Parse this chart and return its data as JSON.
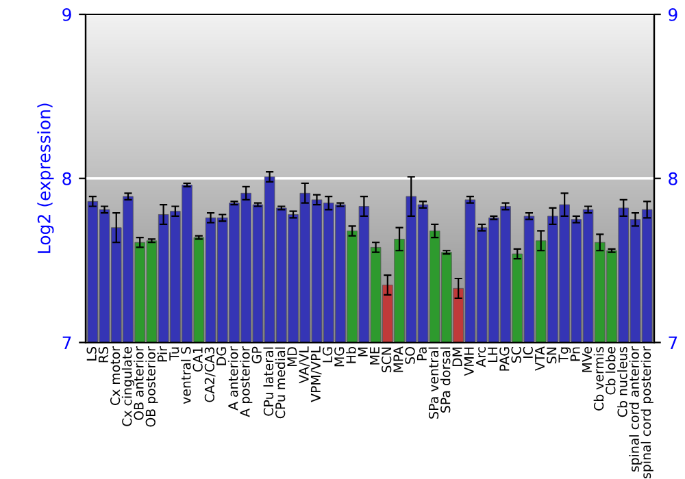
{
  "chart_data": {
    "type": "bar",
    "ylabel": "Log2 (expression)",
    "categories": [
      "LS",
      "RS",
      "Cx motor",
      "Cx cingulate",
      "OB anterior",
      "OB posterior",
      "Pir",
      "Tu",
      "ventral S",
      "CA1",
      "CA2/CA3",
      "DG",
      "A anterior",
      "A posterior",
      "GP",
      "CPu lateral",
      "CPu medial",
      "MD",
      "VA/VL",
      "VPM/VPL",
      "LG",
      "MG",
      "Hb",
      "M",
      "ME",
      "SCN",
      "MPA",
      "SO",
      "Pa",
      "SPa ventral",
      "SPa dorsal",
      "DM",
      "VMH",
      "Arc",
      "LH",
      "PAG",
      "SC",
      "IC",
      "VTA",
      "SN",
      "Tg",
      "Pn",
      "MVe",
      "Cb vermis",
      "Cb lobe",
      "Cb nucleus",
      "spinal cord anterior",
      "spinal cord posterior"
    ],
    "values": [
      7.86,
      7.81,
      7.7,
      7.89,
      7.61,
      7.62,
      7.78,
      7.8,
      7.96,
      7.64,
      7.76,
      7.76,
      7.85,
      7.91,
      7.84,
      8.01,
      7.82,
      7.78,
      7.91,
      7.87,
      7.85,
      7.84,
      7.68,
      7.83,
      7.58,
      7.35,
      7.63,
      7.89,
      7.84,
      7.68,
      7.55,
      7.33,
      7.87,
      7.7,
      7.76,
      7.83,
      7.54,
      7.77,
      7.62,
      7.77,
      7.84,
      7.75,
      7.81,
      7.61,
      7.56,
      7.82,
      7.75,
      7.81
    ],
    "errors": [
      0.03,
      0.02,
      0.09,
      0.02,
      0.03,
      0.01,
      0.06,
      0.03,
      0.01,
      0.01,
      0.03,
      0.02,
      0.01,
      0.04,
      0.01,
      0.03,
      0.01,
      0.02,
      0.06,
      0.03,
      0.04,
      0.01,
      0.03,
      0.06,
      0.03,
      0.06,
      0.07,
      0.12,
      0.02,
      0.04,
      0.01,
      0.06,
      0.02,
      0.02,
      0.01,
      0.02,
      0.03,
      0.02,
      0.06,
      0.05,
      0.07,
      0.02,
      0.02,
      0.05,
      0.01,
      0.05,
      0.04,
      0.05
    ],
    "colors": [
      "#3535b5",
      "#3535b5",
      "#3535b5",
      "#3535b5",
      "#2e9a2e",
      "#2e9a2e",
      "#3535b5",
      "#3535b5",
      "#3535b5",
      "#2e9a2e",
      "#3535b5",
      "#3535b5",
      "#3535b5",
      "#3535b5",
      "#3535b5",
      "#3535b5",
      "#3535b5",
      "#3535b5",
      "#3535b5",
      "#3535b5",
      "#3535b5",
      "#3535b5",
      "#2e9a2e",
      "#3535b5",
      "#2e9a2e",
      "#c03a3a",
      "#2e9a2e",
      "#3535b5",
      "#3535b5",
      "#2e9a2e",
      "#2e9a2e",
      "#c03a3a",
      "#3535b5",
      "#3535b5",
      "#3535b5",
      "#3535b5",
      "#2e9a2e",
      "#3535b5",
      "#2e9a2e",
      "#3535b5",
      "#3535b5",
      "#3535b5",
      "#3535b5",
      "#2e9a2e",
      "#2e9a2e",
      "#3535b5",
      "#3535b5",
      "#3535b5"
    ],
    "ylim": [
      7,
      9
    ],
    "yticks": [
      7,
      8,
      9
    ],
    "y2lim": [
      7,
      9
    ],
    "y2ticks": [
      7,
      8,
      9
    ],
    "grid": "y"
  }
}
